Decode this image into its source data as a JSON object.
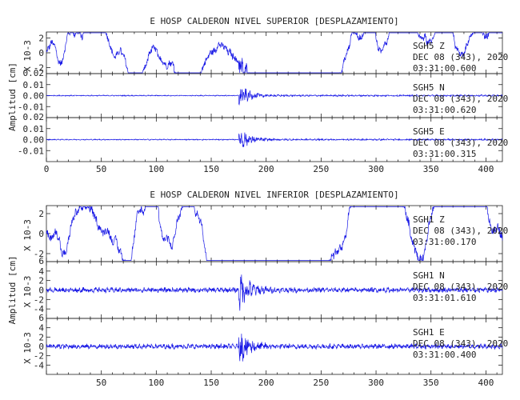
{
  "colors": {
    "trace": "#1a1ae6",
    "axis": "#222222",
    "text": "#222222"
  },
  "chart_data": [
    {
      "type": "line",
      "title": "E HOSP CALDERON NIVEL SUPERIOR [DESPLAZAMIENTO]",
      "ylabel": "Amplitud [cm]",
      "xlim": [
        0,
        415
      ],
      "xticks": [
        0,
        50,
        100,
        150,
        200,
        250,
        300,
        350,
        400
      ],
      "show_xtick_labels": true,
      "series": [
        {
          "name": "SGH5 Z",
          "annotation": [
            "SGH5 Z",
            "DEC 08 (343), 2020",
            "03:31:00.600"
          ],
          "ylim": [
            -2.8,
            2.8
          ],
          "yticks": [
            -2,
            0,
            2
          ],
          "ytick_labels": [
            "-2",
            "0",
            "2"
          ],
          "unit_label": "X 10-3",
          "pre_amp": 0.55,
          "burst_amp": 2.5,
          "post_amp": 0.5,
          "onset": 175,
          "drift": true
        },
        {
          "name": "SGH5 N",
          "annotation": [
            "SGH5 N",
            "DEC 08 (343), 2020",
            "03:31:00.620"
          ],
          "ylim": [
            -0.02,
            0.02
          ],
          "yticks": [
            -0.01,
            0.0,
            0.01
          ],
          "ytick_labels": [
            "-0.01",
            "0.00",
            "0.01"
          ],
          "unit_label": "",
          "pre_amp": 0.0005,
          "burst_amp": 0.013,
          "post_amp": 0.0008,
          "onset": 175,
          "drift": false
        },
        {
          "name": "SGH5 E",
          "annotation": [
            "SGH5 E",
            "DEC 08 (343), 2020",
            "03:31:00.315"
          ],
          "ylim": [
            -0.02,
            0.02
          ],
          "yticks": [
            -0.01,
            0.0,
            0.01
          ],
          "ytick_labels": [
            "-0.01",
            "0.00",
            "0.01"
          ],
          "unit_label": "",
          "pre_amp": 0.0005,
          "burst_amp": 0.014,
          "post_amp": 0.0008,
          "onset": 175,
          "drift": false
        }
      ],
      "extra_tick_labels": [
        "0.02",
        "0.02"
      ]
    },
    {
      "type": "line",
      "title": "E HOSP CALDERON NIVEL INFERIOR [DESPLAZAMIENTO]",
      "ylabel": "Amplitud [cm]",
      "xlim": [
        0,
        415
      ],
      "xticks": [
        50,
        100,
        150,
        200,
        250,
        300,
        350,
        400
      ],
      "show_xtick_labels": true,
      "series": [
        {
          "name": "SGH1 Z",
          "annotation": [
            "SGH1 Z",
            "DEC 08 (343), 2020",
            "03:31:00.170"
          ],
          "ylim": [
            -2.8,
            2.8
          ],
          "yticks": [
            -2,
            0,
            2
          ],
          "ytick_labels": [
            "-2",
            "0",
            "2"
          ],
          "unit_label": "X 10-3",
          "pre_amp": 0.5,
          "burst_amp": 2.2,
          "post_amp": 0.55,
          "onset": 175,
          "drift": true
        },
        {
          "name": "SGH1 N",
          "annotation": [
            "SGH1 N",
            "DEC 08 (343), 2020",
            "03:31:01.610"
          ],
          "ylim": [
            -6,
            6
          ],
          "yticks": [
            -4,
            -2,
            0,
            2,
            4
          ],
          "ytick_labels": [
            "-4",
            "-2",
            "0",
            "2",
            "4"
          ],
          "unit_label": "X 10-3",
          "pre_amp": 0.6,
          "burst_amp": 5.5,
          "post_amp": 0.6,
          "onset": 175,
          "drift": false
        },
        {
          "name": "SGH1 E",
          "annotation": [
            "SGH1 E",
            "DEC 08 (343), 2020",
            "03:31:00.400"
          ],
          "ylim": [
            -6,
            6
          ],
          "yticks": [
            -4,
            -2,
            0,
            2,
            4
          ],
          "ytick_labels": [
            "-4",
            "-2",
            "0",
            "2",
            "4"
          ],
          "unit_label": "X 10-3",
          "pre_amp": 0.6,
          "burst_amp": 5.0,
          "post_amp": 0.6,
          "onset": 175,
          "drift": false
        }
      ],
      "extra_tick_labels": [
        "6",
        "6"
      ]
    }
  ]
}
